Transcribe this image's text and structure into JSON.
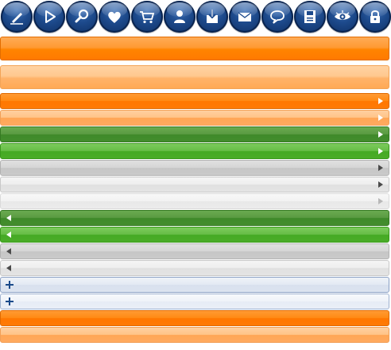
{
  "toolbar": {
    "icons": [
      {
        "name": "pencil-icon"
      },
      {
        "name": "play-icon"
      },
      {
        "name": "search-icon"
      },
      {
        "name": "heart-icon"
      },
      {
        "name": "cart-icon"
      },
      {
        "name": "user-icon"
      },
      {
        "name": "download-icon"
      },
      {
        "name": "mail-icon"
      },
      {
        "name": "chat-icon"
      },
      {
        "name": "save-icon"
      },
      {
        "name": "eye-icon"
      },
      {
        "name": "lock-icon"
      }
    ],
    "icon_color": "#1d4a8c"
  },
  "bars": [
    {
      "style": "orange-big",
      "icon": "none"
    },
    {
      "style": "orange-light-big",
      "icon": "none"
    },
    {
      "style": "orange",
      "icon": "arrow-right-icon"
    },
    {
      "style": "orange-light",
      "icon": "arrow-right-icon"
    },
    {
      "style": "green-dark",
      "icon": "arrow-right-icon"
    },
    {
      "style": "green",
      "icon": "arrow-right-icon"
    },
    {
      "style": "gray",
      "icon": "arrow-right-icon"
    },
    {
      "style": "gray-light",
      "icon": "arrow-right-icon"
    },
    {
      "style": "gray-faint",
      "icon": "arrow-right-icon"
    },
    {
      "style": "green-dark",
      "icon": "arrow-left-icon"
    },
    {
      "style": "green",
      "icon": "arrow-left-icon"
    },
    {
      "style": "gray",
      "icon": "arrow-left-icon"
    },
    {
      "style": "gray-light",
      "icon": "arrow-left-icon"
    },
    {
      "style": "blue-light",
      "icon": "plus-icon"
    },
    {
      "style": "blue-lighter",
      "icon": "plus-icon"
    },
    {
      "style": "orange",
      "icon": "none"
    },
    {
      "style": "orange-light",
      "icon": "none"
    }
  ]
}
